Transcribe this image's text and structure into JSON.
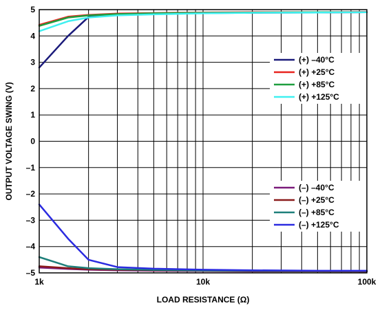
{
  "chart_data": {
    "type": "line",
    "xlabel": "LOAD RESISTANCE (Ω)",
    "ylabel": "OUTPUT VOLTAGE SWING (V)",
    "x_scale": "log",
    "xlim": [
      1000,
      100000
    ],
    "ylim": [
      -5,
      5
    ],
    "x_tick_values": [
      1000,
      10000,
      100000
    ],
    "x_tick_labels": [
      "1k",
      "10k",
      "100k"
    ],
    "y_ticks": [
      -5,
      -4,
      -3,
      -2,
      -1,
      0,
      1,
      2,
      3,
      4,
      5
    ],
    "y_tick_labels": [
      "–5",
      "–4",
      "–3",
      "–2",
      "–1",
      "0",
      "1",
      "2",
      "3",
      "4",
      "5"
    ],
    "grid": true,
    "legend_positions": [
      "right-upper",
      "right-lower"
    ],
    "x": [
      1000,
      1500,
      2000,
      3000,
      5000,
      10000,
      20000,
      50000,
      100000
    ],
    "series": [
      {
        "name": "(+) –40°C",
        "color": "#1a1a7a",
        "group": 0,
        "values": [
          2.8,
          4.0,
          4.72,
          4.8,
          4.84,
          4.87,
          4.88,
          4.89,
          4.9
        ]
      },
      {
        "name": "(+) +25°C",
        "color": "#e8231e",
        "group": 0,
        "values": [
          4.42,
          4.73,
          4.8,
          4.85,
          4.87,
          4.89,
          4.9,
          4.9,
          4.91
        ]
      },
      {
        "name": "(+) +85°C",
        "color": "#1f9e3f",
        "group": 0,
        "values": [
          4.38,
          4.7,
          4.78,
          4.83,
          4.86,
          4.88,
          4.89,
          4.9,
          4.9
        ]
      },
      {
        "name": "(+) +125°C",
        "color": "#3ff0f0",
        "group": 0,
        "values": [
          4.18,
          4.56,
          4.7,
          4.78,
          4.82,
          4.86,
          4.88,
          4.89,
          4.9
        ]
      },
      {
        "name": "(–) –40°C",
        "color": "#7a1a7a",
        "group": 1,
        "values": [
          -4.8,
          -4.85,
          -4.88,
          -4.9,
          -4.92,
          -4.93,
          -4.94,
          -4.94,
          -4.95
        ]
      },
      {
        "name": "(–) +25°C",
        "color": "#8a1a1a",
        "group": 1,
        "values": [
          -4.75,
          -4.82,
          -4.86,
          -4.88,
          -4.9,
          -4.92,
          -4.93,
          -4.94,
          -4.94
        ]
      },
      {
        "name": "(–) +85°C",
        "color": "#1e7f7a",
        "group": 1,
        "values": [
          -4.4,
          -4.75,
          -4.82,
          -4.86,
          -4.89,
          -4.91,
          -4.92,
          -4.93,
          -4.93
        ]
      },
      {
        "name": "(–) +125°C",
        "color": "#2b2be0",
        "group": 1,
        "values": [
          -2.4,
          -3.7,
          -4.5,
          -4.78,
          -4.84,
          -4.88,
          -4.9,
          -4.92,
          -4.92
        ]
      }
    ]
  }
}
